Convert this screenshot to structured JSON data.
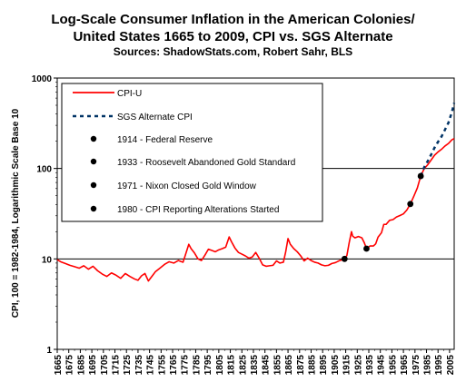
{
  "chart_data": {
    "type": "line",
    "title_line1": "Log-Scale Consumer Inflation in the American Colonies/",
    "title_line2": "United States 1665 to 2009, CPI vs. SGS Alternate",
    "subtitle": "Sources: ShadowStats.com, Robert Sahr, BLS",
    "ylabel": "CPI, 100 = 1982-1984, Logarithmic Scale Base 10",
    "xlabel": "",
    "yscale": "log10",
    "ylim": [
      1,
      1000
    ],
    "y_ticks": [
      "1",
      "10",
      "100",
      "1000"
    ],
    "xlim": [
      1665,
      2009
    ],
    "x_ticks": [
      "1665",
      "1675",
      "1685",
      "1695",
      "1705",
      "1715",
      "1725",
      "1735",
      "1745",
      "1755",
      "1765",
      "1775",
      "1785",
      "1795",
      "1805",
      "1815",
      "1825",
      "1835",
      "1845",
      "1855",
      "1865",
      "1875",
      "1885",
      "1895",
      "1905",
      "1915",
      "1925",
      "1935",
      "1945",
      "1955",
      "1965",
      "1975",
      "1985",
      "1995",
      "2005"
    ],
    "gridlines_y": [
      10,
      100
    ],
    "legend": {
      "placement": "top-left",
      "entries": [
        {
          "label": "CPI-U",
          "style": "solid-line",
          "color": "#ff0000"
        },
        {
          "label": "SGS Alternate CPI",
          "style": "dashed-line",
          "color": "#003366"
        },
        {
          "label": "1914 - Federal Reserve",
          "style": "marker"
        },
        {
          "label": "1933 - Roosevelt Abandoned Gold Standard",
          "style": "marker"
        },
        {
          "label": "1971 - Nixon Closed Gold Window",
          "style": "marker"
        },
        {
          "label": "1980 - CPI Reporting Alterations Started",
          "style": "marker"
        }
      ]
    },
    "series": [
      {
        "name": "CPI-U",
        "color": "#ff0000",
        "points": [
          [
            1665,
            9.8
          ],
          [
            1668,
            9.3
          ],
          [
            1672,
            8.9
          ],
          [
            1676,
            8.5
          ],
          [
            1680,
            8.2
          ],
          [
            1684,
            7.9
          ],
          [
            1688,
            8.4
          ],
          [
            1692,
            7.7
          ],
          [
            1696,
            8.3
          ],
          [
            1700,
            7.4
          ],
          [
            1704,
            6.8
          ],
          [
            1708,
            6.4
          ],
          [
            1712,
            7.0
          ],
          [
            1716,
            6.6
          ],
          [
            1720,
            6.1
          ],
          [
            1724,
            6.9
          ],
          [
            1728,
            6.4
          ],
          [
            1732,
            6.0
          ],
          [
            1735,
            5.8
          ],
          [
            1738,
            6.5
          ],
          [
            1741,
            6.9
          ],
          [
            1744,
            5.7
          ],
          [
            1747,
            6.4
          ],
          [
            1750,
            7.2
          ],
          [
            1754,
            7.9
          ],
          [
            1758,
            8.7
          ],
          [
            1762,
            9.3
          ],
          [
            1766,
            9.0
          ],
          [
            1770,
            9.6
          ],
          [
            1774,
            9.2
          ],
          [
            1776,
            11.0
          ],
          [
            1779,
            14.5
          ],
          [
            1781,
            13.0
          ],
          [
            1784,
            11.6
          ],
          [
            1787,
            10.0
          ],
          [
            1790,
            9.6
          ],
          [
            1793,
            11.0
          ],
          [
            1796,
            12.8
          ],
          [
            1799,
            12.4
          ],
          [
            1802,
            12.0
          ],
          [
            1805,
            12.6
          ],
          [
            1808,
            13.0
          ],
          [
            1811,
            13.5
          ],
          [
            1814,
            17.5
          ],
          [
            1816,
            15.5
          ],
          [
            1819,
            13.2
          ],
          [
            1822,
            11.8
          ],
          [
            1825,
            11.3
          ],
          [
            1828,
            10.8
          ],
          [
            1831,
            10.2
          ],
          [
            1834,
            10.5
          ],
          [
            1837,
            11.8
          ],
          [
            1840,
            10.2
          ],
          [
            1843,
            8.6
          ],
          [
            1846,
            8.3
          ],
          [
            1849,
            8.4
          ],
          [
            1852,
            8.5
          ],
          [
            1855,
            9.5
          ],
          [
            1858,
            9.0
          ],
          [
            1861,
            9.2
          ],
          [
            1863,
            12.0
          ],
          [
            1865,
            16.8
          ],
          [
            1867,
            14.5
          ],
          [
            1870,
            13.0
          ],
          [
            1873,
            12.0
          ],
          [
            1876,
            10.8
          ],
          [
            1879,
            9.5
          ],
          [
            1882,
            10.2
          ],
          [
            1885,
            9.6
          ],
          [
            1888,
            9.2
          ],
          [
            1891,
            9.0
          ],
          [
            1894,
            8.6
          ],
          [
            1897,
            8.4
          ],
          [
            1900,
            8.5
          ],
          [
            1903,
            8.9
          ],
          [
            1906,
            9.1
          ],
          [
            1909,
            9.5
          ],
          [
            1912,
            9.8
          ],
          [
            1914,
            10.0
          ],
          [
            1916,
            10.9
          ],
          [
            1918,
            15.1
          ],
          [
            1920,
            20.0
          ],
          [
            1921,
            17.9
          ],
          [
            1923,
            17.1
          ],
          [
            1926,
            17.7
          ],
          [
            1929,
            17.1
          ],
          [
            1931,
            15.2
          ],
          [
            1933,
            13.0
          ],
          [
            1936,
            13.9
          ],
          [
            1939,
            13.9
          ],
          [
            1941,
            14.7
          ],
          [
            1943,
            17.4
          ],
          [
            1946,
            19.5
          ],
          [
            1948,
            24.1
          ],
          [
            1950,
            24.1
          ],
          [
            1953,
            26.7
          ],
          [
            1956,
            27.2
          ],
          [
            1959,
            29.1
          ],
          [
            1962,
            30.2
          ],
          [
            1965,
            31.5
          ],
          [
            1968,
            34.8
          ],
          [
            1971,
            40.5
          ],
          [
            1974,
            49.3
          ],
          [
            1977,
            60.6
          ],
          [
            1980,
            82.4
          ],
          [
            1983,
            99.6
          ],
          [
            1986,
            109.6
          ],
          [
            1989,
            124.0
          ],
          [
            1992,
            140.3
          ],
          [
            1995,
            152.4
          ],
          [
            1998,
            163.0
          ],
          [
            2001,
            177.1
          ],
          [
            2004,
            188.9
          ],
          [
            2007,
            207.3
          ],
          [
            2009,
            214.5
          ]
        ]
      },
      {
        "name": "SGS Alternate CPI",
        "color": "#003366",
        "points": [
          [
            1980,
            82.4
          ],
          [
            1983,
            103
          ],
          [
            1986,
            120
          ],
          [
            1989,
            142
          ],
          [
            1992,
            170
          ],
          [
            1995,
            197
          ],
          [
            1998,
            225
          ],
          [
            2001,
            268
          ],
          [
            2004,
            320
          ],
          [
            2007,
            420
          ],
          [
            2009,
            530
          ]
        ]
      }
    ],
    "markers": [
      {
        "year": 1914,
        "value": 10.0,
        "label": "1914 - Federal Reserve"
      },
      {
        "year": 1933,
        "value": 13.0,
        "label": "1933 - Roosevelt Abandoned Gold Standard"
      },
      {
        "year": 1971,
        "value": 40.5,
        "label": "1971 - Nixon Closed Gold Window"
      },
      {
        "year": 1980,
        "value": 82.4,
        "label": "1980 - CPI Reporting Alterations Started"
      }
    ]
  }
}
